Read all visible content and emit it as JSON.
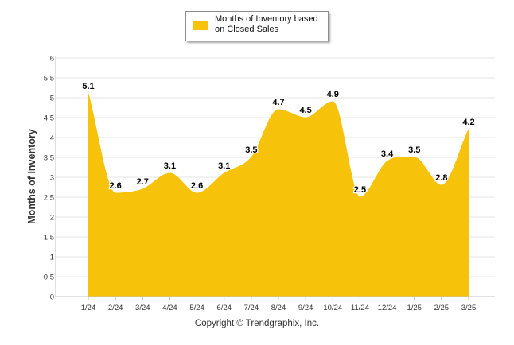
{
  "chart_data": {
    "type": "area",
    "title": "",
    "ylabel": "Months of Inventory",
    "xlabel": "",
    "ylim": [
      0,
      6
    ],
    "ytick_step": 0.5,
    "yticks": [
      "0",
      "0.5",
      "1",
      "1.5",
      "2",
      "2.5",
      "3",
      "3.5",
      "4",
      "4.5",
      "5",
      "5.5",
      "6"
    ],
    "categories": [
      "1/24",
      "2/24",
      "3/24",
      "4/24",
      "5/24",
      "6/24",
      "7/24",
      "8/24",
      "9/24",
      "10/24",
      "11/24",
      "12/24",
      "1/25",
      "2/25",
      "3/25"
    ],
    "series": [
      {
        "name": "Months of Inventory based on Closed Sales",
        "values": [
          5.1,
          2.6,
          2.7,
          3.1,
          2.6,
          3.1,
          3.5,
          4.7,
          4.5,
          4.9,
          2.5,
          3.4,
          3.5,
          2.8,
          4.2
        ],
        "labels": [
          "5.1",
          "2.6",
          "2.7",
          "3.1",
          "2.6",
          "3.1",
          "3.5",
          "4.7",
          "4.5",
          "4.9",
          "2.5",
          "3.4",
          "3.5",
          "2.8",
          "4.2"
        ],
        "color": "#f7c20a"
      }
    ],
    "legend": {
      "position": "top-center",
      "line1": "Months of Inventory based",
      "line2": "on Closed Sales"
    },
    "grid": true
  },
  "footer": {
    "copyright": "Copyright © Trendgraphix, Inc."
  },
  "colors": {
    "area": "#f7c20a",
    "grid": "#e6e6e6",
    "axis": "#c0c0c0",
    "tick_text": "#333333"
  }
}
